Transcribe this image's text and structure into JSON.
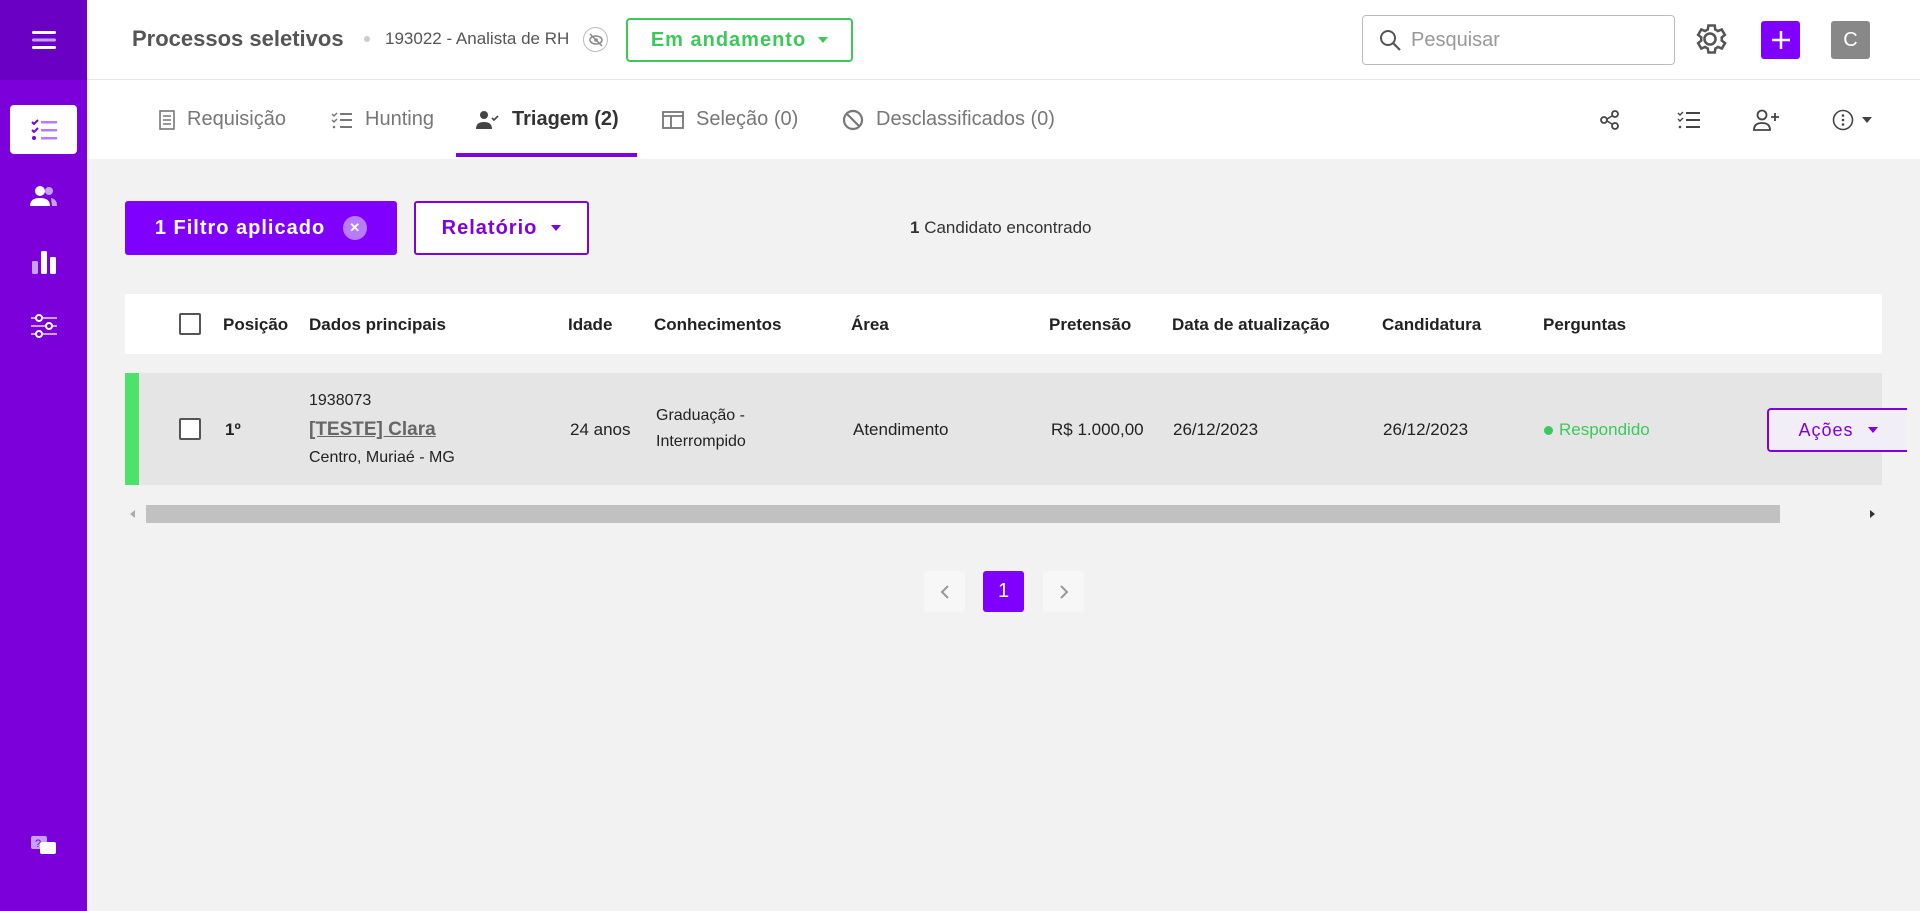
{
  "colors": {
    "brand": "#8000ff",
    "sidebar": "#7b00d9",
    "status": "#3cc85a",
    "row_marker": "#4de26a"
  },
  "sidebar": {
    "items": [
      {
        "icon": "menu-icon"
      },
      {
        "icon": "checklist-icon",
        "active": true
      },
      {
        "icon": "people-icon"
      },
      {
        "icon": "bar-chart-icon"
      },
      {
        "icon": "sliders-icon"
      },
      {
        "icon": "help-chat-icon"
      }
    ]
  },
  "header": {
    "title": "Processos seletivos",
    "process": "193022 - Analista de RH",
    "status": "Em andamento",
    "search_placeholder": "Pesquisar",
    "avatar": "C"
  },
  "tabs": [
    {
      "label": "Requisição"
    },
    {
      "label": "Hunting"
    },
    {
      "label": "Triagem (2)",
      "active": true
    },
    {
      "label": "Seleção (0)"
    },
    {
      "label": "Desclassificados (0)"
    }
  ],
  "toolbar": {
    "filter": "1 Filtro aplicado",
    "report": "Relatório",
    "found_count": "1",
    "found_text": "Candidato encontrado"
  },
  "table": {
    "columns": [
      "Posição",
      "Dados principais",
      "Idade",
      "Conhecimentos",
      "Área",
      "Pretensão",
      "Data de atualização",
      "Candidatura",
      "Perguntas"
    ],
    "rows": [
      {
        "position": "1º",
        "id": "1938073",
        "name": "[TESTE] Clara",
        "location": "Centro, Muriaé - MG",
        "age": "24 anos",
        "knowledge_1": "Graduação -",
        "knowledge_2": "Interrompido",
        "area": "Atendimento",
        "salary": "R$ 1.000,00",
        "updated": "26/12/2023",
        "applied": "26/12/2023",
        "questions": "Respondido",
        "actions": "Ações"
      }
    ]
  },
  "pagination": {
    "current": "1"
  }
}
